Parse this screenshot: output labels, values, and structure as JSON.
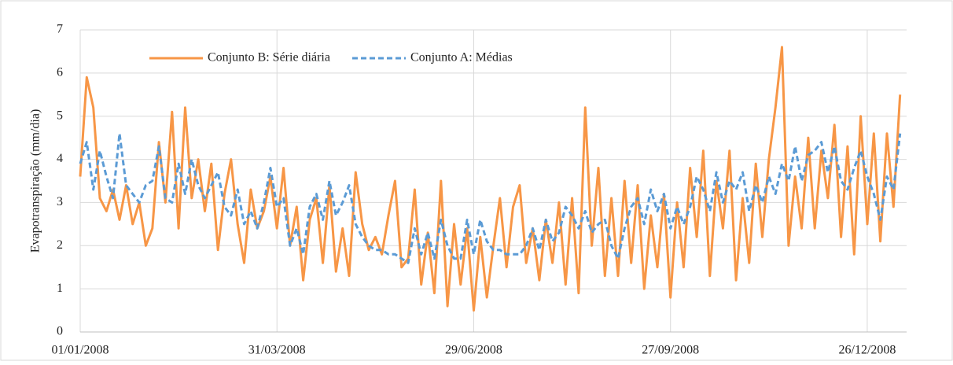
{
  "chart_data": {
    "type": "line",
    "y_label": "Evapotranspiração (mm/dia)",
    "x": [
      "01/01/2008",
      "04/01/2008",
      "07/01/2008",
      "10/01/2008",
      "13/01/2008",
      "16/01/2008",
      "19/01/2008",
      "22/01/2008",
      "25/01/2008",
      "28/01/2008",
      "31/01/2008",
      "03/02/2008",
      "06/02/2008",
      "09/02/2008",
      "12/02/2008",
      "15/02/2008",
      "18/02/2008",
      "21/02/2008",
      "24/02/2008",
      "27/02/2008",
      "01/03/2008",
      "04/03/2008",
      "07/03/2008",
      "10/03/2008",
      "13/03/2008",
      "16/03/2008",
      "19/03/2008",
      "22/03/2008",
      "25/03/2008",
      "28/03/2008",
      "31/03/2008",
      "03/04/2008",
      "06/04/2008",
      "09/04/2008",
      "12/04/2008",
      "15/04/2008",
      "18/04/2008",
      "21/04/2008",
      "24/04/2008",
      "27/04/2008",
      "30/04/2008",
      "03/05/2008",
      "06/05/2008",
      "09/05/2008",
      "12/05/2008",
      "15/05/2008",
      "18/05/2008",
      "21/05/2008",
      "24/05/2008",
      "27/05/2008",
      "30/05/2008",
      "02/06/2008",
      "05/06/2008",
      "08/06/2008",
      "11/06/2008",
      "14/06/2008",
      "17/06/2008",
      "20/06/2008",
      "23/06/2008",
      "26/06/2008",
      "29/06/2008",
      "02/07/2008",
      "05/07/2008",
      "08/07/2008",
      "11/07/2008",
      "14/07/2008",
      "17/07/2008",
      "20/07/2008",
      "23/07/2008",
      "26/07/2008",
      "29/07/2008",
      "01/08/2008",
      "04/08/2008",
      "07/08/2008",
      "10/08/2008",
      "13/08/2008",
      "16/08/2008",
      "19/08/2008",
      "22/08/2008",
      "25/08/2008",
      "28/08/2008",
      "31/08/2008",
      "03/09/2008",
      "06/09/2008",
      "09/09/2008",
      "12/09/2008",
      "15/09/2008",
      "18/09/2008",
      "21/09/2008",
      "24/09/2008",
      "27/09/2008",
      "30/09/2008",
      "03/10/2008",
      "06/10/2008",
      "09/10/2008",
      "12/10/2008",
      "15/10/2008",
      "18/10/2008",
      "21/10/2008",
      "24/10/2008",
      "27/10/2008",
      "30/10/2008",
      "02/11/2008",
      "05/11/2008",
      "08/11/2008",
      "11/11/2008",
      "14/11/2008",
      "17/11/2008",
      "20/11/2008",
      "23/11/2008",
      "26/11/2008",
      "29/11/2008",
      "02/12/2008",
      "05/12/2008",
      "08/12/2008",
      "11/12/2008",
      "14/12/2008",
      "17/12/2008",
      "20/12/2008",
      "23/12/2008",
      "26/12/2008",
      "29/12/2008",
      "01/01/2009",
      "04/01/2009",
      "07/01/2009",
      "10/01/2009"
    ],
    "series": [
      {
        "name": "Conjunto B: Série diária",
        "color": "#f79646",
        "line_style": "solid",
        "values": [
          3.6,
          5.9,
          5.2,
          3.1,
          2.8,
          3.3,
          2.6,
          3.4,
          2.5,
          3.0,
          2.0,
          2.4,
          4.4,
          3.0,
          5.1,
          2.4,
          5.2,
          3.1,
          4.0,
          2.8,
          3.9,
          1.9,
          3.2,
          4.0,
          2.5,
          1.6,
          3.3,
          2.4,
          2.8,
          3.6,
          2.4,
          3.8,
          2.0,
          2.9,
          1.2,
          2.6,
          3.1,
          1.6,
          3.4,
          1.4,
          2.4,
          1.3,
          3.7,
          2.5,
          1.9,
          2.2,
          1.8,
          2.7,
          3.5,
          1.5,
          1.7,
          3.3,
          1.1,
          2.3,
          0.9,
          3.5,
          0.6,
          2.5,
          1.1,
          2.4,
          0.5,
          2.2,
          0.8,
          2.0,
          3.1,
          1.5,
          2.9,
          3.4,
          1.6,
          2.4,
          1.2,
          2.6,
          1.6,
          3.0,
          1.1,
          3.1,
          0.9,
          5.2,
          2.0,
          3.8,
          1.3,
          3.1,
          1.3,
          3.5,
          1.6,
          3.4,
          1.0,
          2.7,
          1.5,
          3.2,
          0.8,
          3.0,
          1.5,
          3.8,
          2.2,
          4.2,
          1.3,
          3.5,
          2.4,
          4.2,
          1.2,
          3.1,
          1.6,
          3.9,
          2.2,
          4.0,
          5.2,
          6.6,
          2.0,
          3.6,
          2.4,
          4.5,
          2.4,
          4.2,
          3.1,
          4.8,
          2.2,
          4.3,
          1.8,
          5.0,
          2.5,
          4.6,
          2.1,
          4.6,
          2.9,
          5.5
        ]
      },
      {
        "name": "Conjunto A: Médias",
        "color": "#5b9bd5",
        "line_style": "dashed",
        "values": [
          3.9,
          4.4,
          3.3,
          4.2,
          3.6,
          3.1,
          4.6,
          3.4,
          3.2,
          3.0,
          3.4,
          3.5,
          4.3,
          3.1,
          3.0,
          3.9,
          3.2,
          4.0,
          3.4,
          3.1,
          3.4,
          3.7,
          2.9,
          2.7,
          3.3,
          2.5,
          2.8,
          2.4,
          3.0,
          3.8,
          2.9,
          3.1,
          2.0,
          2.4,
          1.8,
          2.9,
          3.2,
          2.6,
          3.5,
          2.7,
          3.0,
          3.4,
          2.5,
          2.2,
          2.0,
          1.9,
          1.9,
          1.8,
          1.8,
          1.7,
          1.6,
          2.4,
          1.8,
          2.3,
          1.7,
          2.6,
          2.0,
          1.7,
          1.7,
          2.6,
          1.8,
          2.6,
          2.1,
          1.9,
          1.9,
          1.8,
          1.8,
          1.8,
          2.0,
          2.4,
          1.9,
          2.6,
          2.1,
          2.3,
          2.9,
          2.7,
          2.4,
          2.8,
          2.3,
          2.5,
          2.6,
          2.0,
          1.7,
          2.4,
          2.9,
          3.1,
          2.5,
          3.3,
          2.8,
          3.2,
          2.4,
          2.9,
          2.5,
          2.9,
          3.6,
          3.3,
          2.8,
          3.7,
          3.0,
          3.5,
          3.3,
          3.7,
          2.8,
          3.4,
          3.0,
          3.6,
          3.2,
          3.9,
          3.5,
          4.3,
          3.5,
          4.1,
          4.2,
          4.4,
          3.7,
          4.3,
          3.5,
          3.3,
          3.8,
          4.2,
          3.6,
          3.2,
          2.6,
          3.6,
          3.3,
          4.6
        ]
      }
    ],
    "xlim": [
      "01/01/2008",
      "13/01/2009"
    ],
    "xticks": [
      "01/01/2008",
      "31/03/2008",
      "29/06/2008",
      "27/09/2008",
      "26/12/2008"
    ],
    "ylim": [
      0,
      7
    ],
    "yticks": [
      0,
      1,
      2,
      3,
      4,
      5,
      6,
      7
    ],
    "grid": true,
    "legend": "top"
  }
}
